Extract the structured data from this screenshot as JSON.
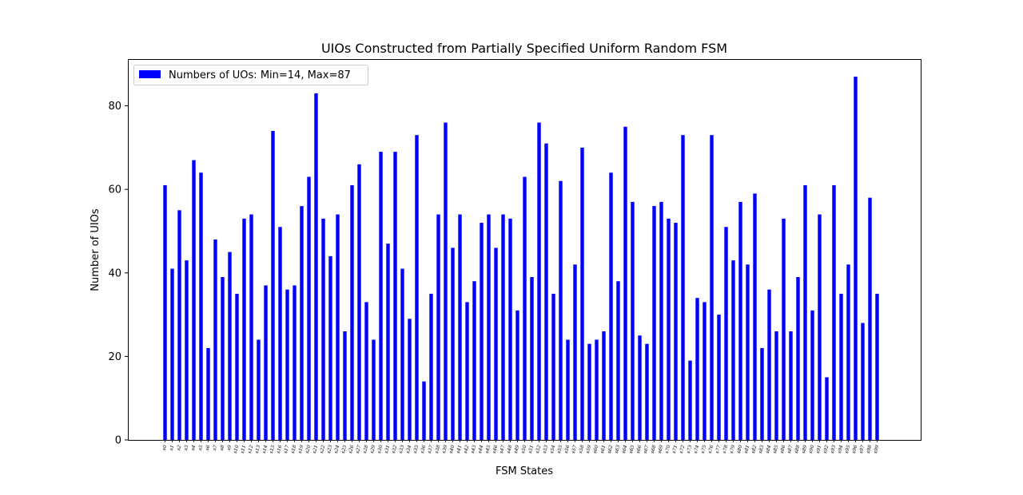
{
  "chart_data": {
    "type": "bar",
    "title": "UIOs Constructed from Partially Specified Uniform Random FSM",
    "xlabel": "FSM States",
    "ylabel": "Number of UIOs",
    "ylim": [
      0,
      91.2
    ],
    "yticks": [
      0,
      20,
      40,
      60,
      80
    ],
    "grid": false,
    "legend_position": "top-left",
    "series": [
      {
        "name": "Numbers of UOs: Min=14, Max=87",
        "color": "#0000ff",
        "values": [
          61,
          41,
          55,
          43,
          67,
          64,
          22,
          48,
          39,
          45,
          35,
          53,
          54,
          24,
          37,
          74,
          51,
          36,
          37,
          56,
          63,
          83,
          53,
          44,
          54,
          26,
          61,
          66,
          33,
          24,
          69,
          47,
          69,
          41,
          29,
          73,
          14,
          35,
          54,
          76,
          46,
          54,
          33,
          38,
          52,
          54,
          46,
          54,
          53,
          31,
          63,
          39,
          76,
          71,
          35,
          62,
          24,
          42,
          70,
          23,
          24,
          26,
          64,
          38,
          75,
          57,
          25,
          23,
          56,
          57,
          53,
          52,
          73,
          19,
          34,
          33,
          73,
          30,
          51,
          43,
          57,
          42,
          59,
          22,
          36,
          26,
          53,
          26,
          39,
          61,
          31,
          54,
          15,
          61,
          35,
          42,
          87,
          28,
          58,
          35
        ]
      }
    ],
    "categories": [
      "s0",
      "s1",
      "s2",
      "s3",
      "s4",
      "s5",
      "s6",
      "s7",
      "s8",
      "s9",
      "s10",
      "s11",
      "s12",
      "s13",
      "s14",
      "s15",
      "s16",
      "s17",
      "s18",
      "s19",
      "s20",
      "s21",
      "s22",
      "s23",
      "s24",
      "s25",
      "s26",
      "s27",
      "s28",
      "s29",
      "s30",
      "s31",
      "s32",
      "s33",
      "s34",
      "s35",
      "s36",
      "s37",
      "s38",
      "s39",
      "s40",
      "s41",
      "s42",
      "s43",
      "s44",
      "s45",
      "s46",
      "s47",
      "s48",
      "s49",
      "s50",
      "s51",
      "s52",
      "s53",
      "s54",
      "s55",
      "s56",
      "s57",
      "s58",
      "s59",
      "s60",
      "s61",
      "s62",
      "s63",
      "s64",
      "s65",
      "s66",
      "s67",
      "s68",
      "s69",
      "s70",
      "s71",
      "s72",
      "s73",
      "s74",
      "s75",
      "s76",
      "s77",
      "s78",
      "s79",
      "s80",
      "s81",
      "s82",
      "s83",
      "s84",
      "s85",
      "s86",
      "s87",
      "s88",
      "s89",
      "s90",
      "s91",
      "s92",
      "s93",
      "s94",
      "s95",
      "s96",
      "s97",
      "s98",
      "s99"
    ]
  }
}
